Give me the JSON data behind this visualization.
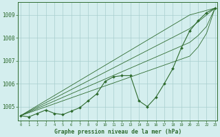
{
  "hours": [
    0,
    1,
    2,
    3,
    4,
    5,
    6,
    7,
    8,
    9,
    10,
    11,
    12,
    13,
    14,
    15,
    16,
    17,
    18,
    19,
    20,
    21,
    22,
    23
  ],
  "pressure_actual": [
    1004.6,
    1004.55,
    1004.7,
    1004.85,
    1004.7,
    1004.65,
    1004.8,
    1004.95,
    1005.25,
    1005.55,
    1006.1,
    1006.3,
    1006.35,
    1006.35,
    1005.25,
    1005.0,
    1005.4,
    1006.0,
    1006.65,
    1007.55,
    1008.3,
    1008.75,
    1009.1,
    1009.3
  ],
  "trend1": [
    1004.6,
    1004.82,
    1005.04,
    1005.26,
    1005.48,
    1005.7,
    1005.92,
    1006.14,
    1006.36,
    1006.58,
    1006.8,
    1007.02,
    1007.24,
    1007.46,
    1007.68,
    1007.9,
    1008.12,
    1008.34,
    1008.56,
    1008.78,
    1009.0,
    1009.1,
    1009.2,
    1009.3
  ],
  "trend2": [
    1004.6,
    1004.79,
    1004.98,
    1005.17,
    1005.36,
    1005.55,
    1005.74,
    1005.93,
    1006.12,
    1006.31,
    1006.5,
    1006.69,
    1006.88,
    1007.07,
    1007.26,
    1007.45,
    1007.64,
    1007.83,
    1008.02,
    1008.21,
    1008.4,
    1008.7,
    1009.0,
    1009.3
  ],
  "trend3": [
    1004.6,
    1004.76,
    1004.92,
    1005.08,
    1005.24,
    1005.4,
    1005.56,
    1005.72,
    1005.88,
    1006.04,
    1006.2,
    1006.36,
    1006.52,
    1006.68,
    1006.84,
    1007.0,
    1007.16,
    1007.32,
    1007.48,
    1007.64,
    1007.8,
    1008.1,
    1008.5,
    1009.3
  ],
  "trend4": [
    1004.6,
    1004.73,
    1004.86,
    1004.99,
    1005.12,
    1005.25,
    1005.38,
    1005.51,
    1005.64,
    1005.77,
    1005.9,
    1006.03,
    1006.16,
    1006.29,
    1006.42,
    1006.55,
    1006.68,
    1006.81,
    1006.94,
    1007.07,
    1007.2,
    1007.6,
    1008.2,
    1009.3
  ],
  "bg_color": "#d4eeee",
  "line_color": "#2d6a2d",
  "grid_color": "#a8cece",
  "xlabel": "Graphe pression niveau de la mer (hPa)",
  "ylim": [
    1004.4,
    1009.55
  ],
  "yticks": [
    1005,
    1006,
    1007,
    1008,
    1009
  ],
  "xticks": [
    0,
    1,
    2,
    3,
    4,
    5,
    6,
    7,
    8,
    9,
    10,
    11,
    12,
    13,
    14,
    15,
    16,
    17,
    18,
    19,
    20,
    21,
    22,
    23
  ]
}
